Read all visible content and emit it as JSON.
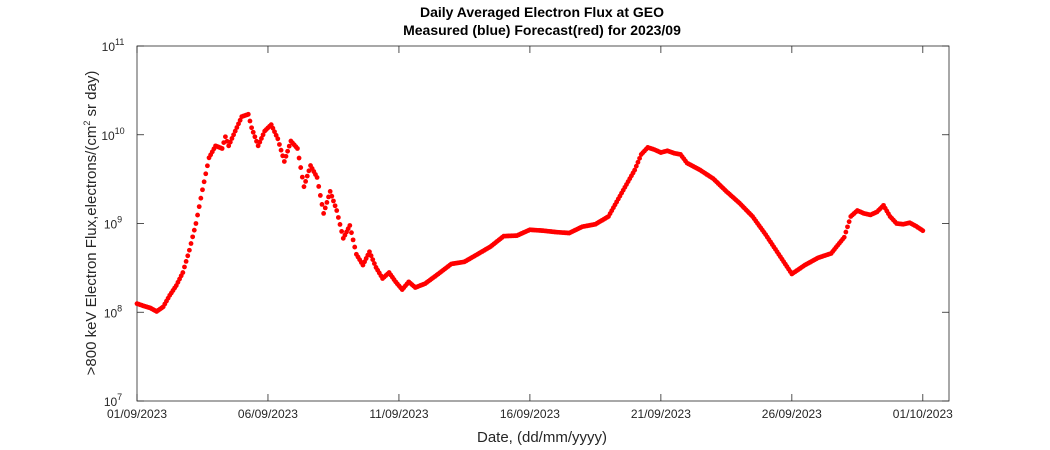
{
  "chart_data": {
    "type": "scatter",
    "title": "Daily Averaged Electron Flux at GEO",
    "subtitle": "Measured (blue) Forecast(red) for 2023/09",
    "xlabel": "Date, (dd/mm/yyyy)",
    "ylabel": ">800 keV Electron Flux,electrons/(cm² sr day)",
    "ylabel_parts": {
      "pre": ">800 keV Electron Flux,electrons/(cm",
      "sup": "2",
      "post": " sr day)"
    },
    "y_scale": "log",
    "ylim": [
      10000000,
      100000000000
    ],
    "y_ticks": [
      {
        "base": "10",
        "exp": "7",
        "value": 10000000
      },
      {
        "base": "10",
        "exp": "8",
        "value": 100000000
      },
      {
        "base": "10",
        "exp": "9",
        "value": 1000000000
      },
      {
        "base": "10",
        "exp": "10",
        "value": 10000000000
      },
      {
        "base": "10",
        "exp": "11",
        "value": 100000000000
      }
    ],
    "xlim": [
      "01/09/2023 00:00",
      "02/10/2023 00:00"
    ],
    "x_ticks": [
      "01/09/2023",
      "06/09/2023",
      "11/09/2023",
      "16/09/2023",
      "21/09/2023",
      "26/09/2023",
      "01/10/2023"
    ],
    "grid": false,
    "series": [
      {
        "color": "#ff0000",
        "marker": "dot",
        "points": [
          [
            "01/09/2023 00:00",
            125000000.0
          ],
          [
            "01/09/2023 06:00",
            118000000.0
          ],
          [
            "01/09/2023 12:00",
            112000000.0
          ],
          [
            "01/09/2023 18:00",
            102000000.0
          ],
          [
            "02/09/2023 00:00",
            115000000.0
          ],
          [
            "02/09/2023 06:00",
            155000000.0
          ],
          [
            "02/09/2023 12:00",
            200000000.0
          ],
          [
            "02/09/2023 18:00",
            280000000.0
          ],
          [
            "03/09/2023 00:00",
            500000000.0
          ],
          [
            "03/09/2023 06:00",
            1000000000.0
          ],
          [
            "03/09/2023 12:00",
            2400000000.0
          ],
          [
            "03/09/2023 18:00",
            5500000000.0
          ],
          [
            "04/09/2023 00:00",
            7500000000.0
          ],
          [
            "04/09/2023 06:00",
            7000000000.0
          ],
          [
            "04/09/2023 09:00",
            9500000000.0
          ],
          [
            "04/09/2023 12:00",
            7500000000.0
          ],
          [
            "04/09/2023 18:00",
            11000000000.0
          ],
          [
            "05/09/2023 00:00",
            16000000000.0
          ],
          [
            "05/09/2023 06:00",
            17000000000.0
          ],
          [
            "05/09/2023 09:00",
            12000000000.0
          ],
          [
            "05/09/2023 15:00",
            7500000000.0
          ],
          [
            "05/09/2023 21:00",
            11000000000.0
          ],
          [
            "06/09/2023 03:00",
            13000000000.0
          ],
          [
            "06/09/2023 09:00",
            9000000000.0
          ],
          [
            "06/09/2023 15:00",
            5000000000.0
          ],
          [
            "06/09/2023 21:00",
            8500000000.0
          ],
          [
            "07/09/2023 03:00",
            7000000000.0
          ],
          [
            "07/09/2023 09:00",
            2600000000.0
          ],
          [
            "07/09/2023 15:00",
            4500000000.0
          ],
          [
            "07/09/2023 21:00",
            3300000000.0
          ],
          [
            "08/09/2023 03:00",
            1300000000.0
          ],
          [
            "08/09/2023 09:00",
            2300000000.0
          ],
          [
            "08/09/2023 15:00",
            1400000000.0
          ],
          [
            "08/09/2023 21:00",
            680000000.0
          ],
          [
            "09/09/2023 03:00",
            950000000.0
          ],
          [
            "09/09/2023 09:00",
            450000000.0
          ],
          [
            "09/09/2023 15:00",
            340000000.0
          ],
          [
            "09/09/2023 21:00",
            480000000.0
          ],
          [
            "10/09/2023 03:00",
            320000000.0
          ],
          [
            "10/09/2023 09:00",
            240000000.0
          ],
          [
            "10/09/2023 15:00",
            280000000.0
          ],
          [
            "10/09/2023 21:00",
            220000000.0
          ],
          [
            "11/09/2023 03:00",
            180000000.0
          ],
          [
            "11/09/2023 09:00",
            220000000.0
          ],
          [
            "11/09/2023 15:00",
            190000000.0
          ],
          [
            "12/09/2023 00:00",
            210000000.0
          ],
          [
            "12/09/2023 12:00",
            270000000.0
          ],
          [
            "13/09/2023 00:00",
            350000000.0
          ],
          [
            "13/09/2023 12:00",
            370000000.0
          ],
          [
            "14/09/2023 00:00",
            450000000.0
          ],
          [
            "14/09/2023 12:00",
            550000000.0
          ],
          [
            "15/09/2023 00:00",
            720000000.0
          ],
          [
            "15/09/2023 12:00",
            730000000.0
          ],
          [
            "16/09/2023 00:00",
            850000000.0
          ],
          [
            "16/09/2023 12:00",
            830000000.0
          ],
          [
            "17/09/2023 00:00",
            800000000.0
          ],
          [
            "17/09/2023 12:00",
            780000000.0
          ],
          [
            "18/09/2023 00:00",
            920000000.0
          ],
          [
            "18/09/2023 12:00",
            980000000.0
          ],
          [
            "19/09/2023 00:00",
            1200000000.0
          ],
          [
            "19/09/2023 12:00",
            2200000000.0
          ],
          [
            "20/09/2023 00:00",
            4000000000.0
          ],
          [
            "20/09/2023 06:00",
            6000000000.0
          ],
          [
            "20/09/2023 12:00",
            7200000000.0
          ],
          [
            "20/09/2023 18:00",
            6800000000.0
          ],
          [
            "21/09/2023 00:00",
            6300000000.0
          ],
          [
            "21/09/2023 06:00",
            6600000000.0
          ],
          [
            "21/09/2023 12:00",
            6200000000.0
          ],
          [
            "21/09/2023 18:00",
            6000000000.0
          ],
          [
            "22/09/2023 00:00",
            4800000000.0
          ],
          [
            "22/09/2023 12:00",
            4000000000.0
          ],
          [
            "23/09/2023 00:00",
            3200000000.0
          ],
          [
            "23/09/2023 12:00",
            2300000000.0
          ],
          [
            "24/09/2023 00:00",
            1700000000.0
          ],
          [
            "24/09/2023 12:00",
            1200000000.0
          ],
          [
            "25/09/2023 00:00",
            750000000.0
          ],
          [
            "25/09/2023 12:00",
            450000000.0
          ],
          [
            "26/09/2023 00:00",
            270000000.0
          ],
          [
            "26/09/2023 12:00",
            340000000.0
          ],
          [
            "27/09/2023 00:00",
            410000000.0
          ],
          [
            "27/09/2023 12:00",
            460000000.0
          ],
          [
            "28/09/2023 00:00",
            700000000.0
          ],
          [
            "28/09/2023 06:00",
            1200000000.0
          ],
          [
            "28/09/2023 12:00",
            1400000000.0
          ],
          [
            "28/09/2023 18:00",
            1300000000.0
          ],
          [
            "29/09/2023 00:00",
            1250000000.0
          ],
          [
            "29/09/2023 06:00",
            1350000000.0
          ],
          [
            "29/09/2023 12:00",
            1600000000.0
          ],
          [
            "29/09/2023 18:00",
            1200000000.0
          ],
          [
            "30/09/2023 00:00",
            1000000000.0
          ],
          [
            "30/09/2023 06:00",
            980000000.0
          ],
          [
            "30/09/2023 12:00",
            1020000000.0
          ],
          [
            "30/09/2023 18:00",
            930000000.0
          ],
          [
            "01/10/2023 00:00",
            830000000.0
          ]
        ]
      }
    ]
  }
}
